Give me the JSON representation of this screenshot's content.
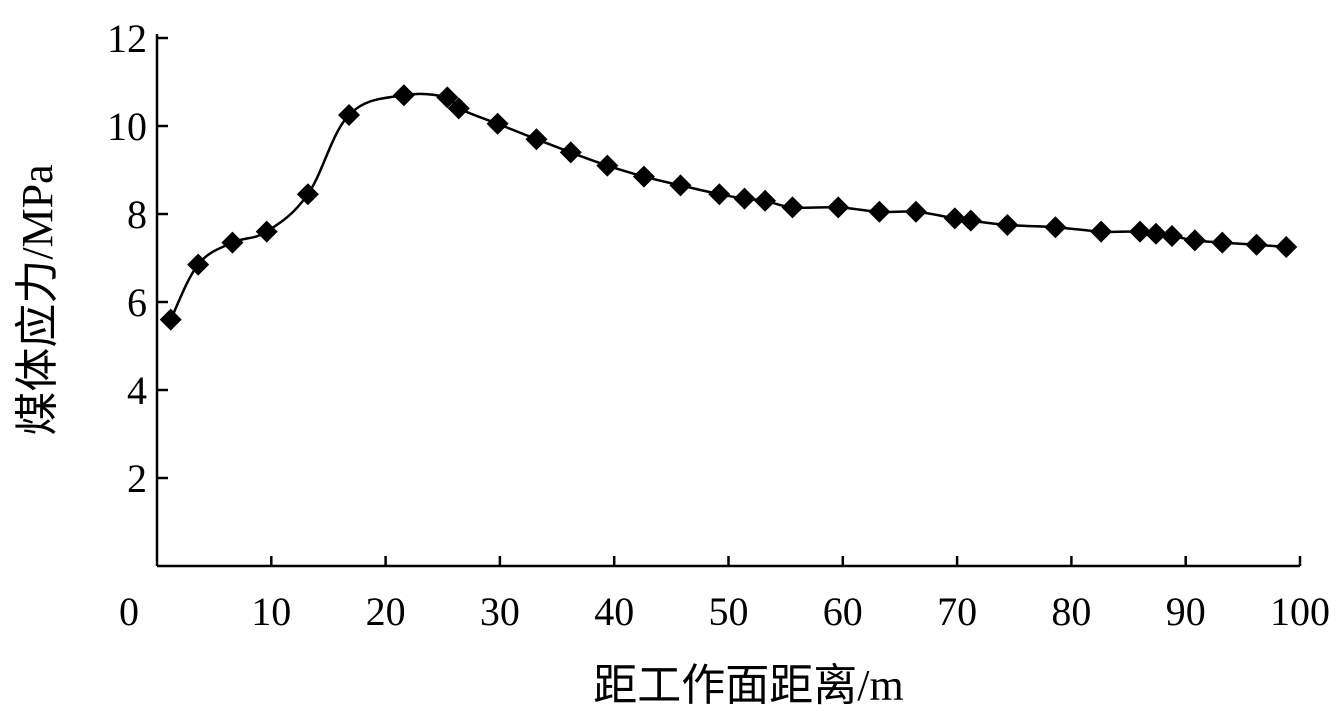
{
  "chart_data": {
    "type": "line",
    "xlabel": "距工作面距离/m",
    "ylabel": "煤体应力/MPa",
    "xlim": [
      0,
      100
    ],
    "ylim": [
      0,
      12
    ],
    "xticks": [
      0,
      10,
      20,
      30,
      40,
      50,
      60,
      70,
      80,
      90,
      100
    ],
    "yticks": [
      2,
      4,
      6,
      8,
      10,
      12
    ],
    "grid": false,
    "legend": "none",
    "marker": "diamond",
    "color": "#000000",
    "series": [
      {
        "x": [
          1.2,
          3.6,
          6.6,
          9.6,
          13.2,
          16.8,
          21.6,
          25.4,
          26.4,
          29.8,
          33.2,
          36.2,
          39.4,
          42.6,
          45.8,
          49.2,
          51.4,
          53.2,
          55.6,
          59.6,
          63.2,
          66.4,
          69.8,
          71.2,
          74.4,
          78.6,
          82.6,
          86.0,
          87.4,
          88.8,
          90.8,
          93.2,
          96.2,
          98.8
        ],
        "y": [
          5.6,
          6.85,
          7.35,
          7.6,
          8.45,
          10.25,
          10.7,
          10.65,
          10.4,
          10.05,
          9.7,
          9.4,
          9.1,
          8.85,
          8.65,
          8.45,
          8.35,
          8.3,
          8.15,
          8.15,
          8.05,
          8.05,
          7.9,
          7.85,
          7.75,
          7.7,
          7.6,
          7.6,
          7.55,
          7.5,
          7.4,
          7.35,
          7.3,
          7.25
        ]
      }
    ]
  }
}
